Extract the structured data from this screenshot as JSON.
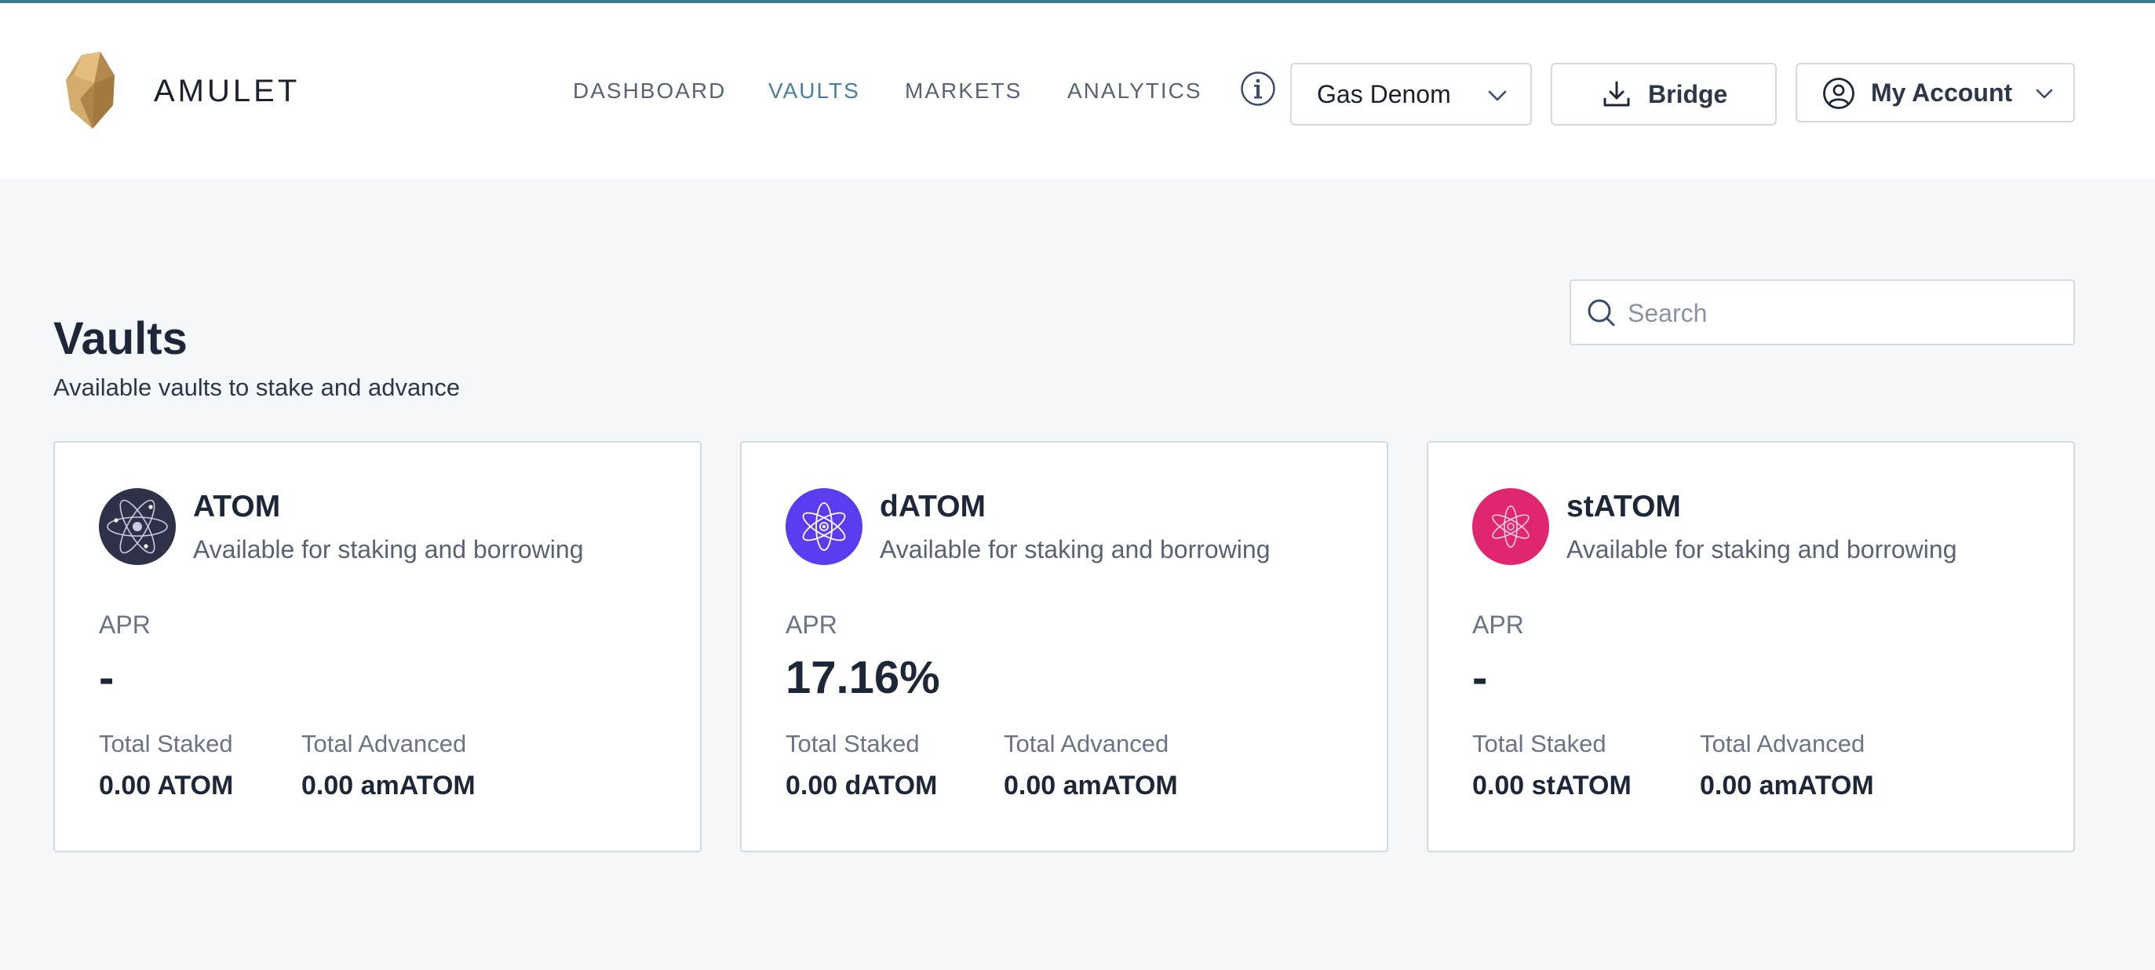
{
  "header": {
    "brand": "AMULET",
    "nav": [
      {
        "label": "DASHBOARD",
        "active": false
      },
      {
        "label": "VAULTS",
        "active": true
      },
      {
        "label": "MARKETS",
        "active": false
      },
      {
        "label": "ANALYTICS",
        "active": false
      }
    ],
    "gas_denom_label": "Gas Denom",
    "bridge_label": "Bridge",
    "account_label": "My Account"
  },
  "main": {
    "title": "Vaults",
    "subtitle": "Available vaults to stake and advance",
    "search_placeholder": "Search",
    "vaults": [
      {
        "name": "ATOM",
        "description": "Available for staking and borrowing",
        "apr_label": "APR",
        "apr": "-",
        "staked_label": "Total Staked",
        "staked": "0.00 ATOM",
        "advanced_label": "Total Advanced",
        "advanced": "0.00 amATOM",
        "icon_color": "#2e3148"
      },
      {
        "name": "dATOM",
        "description": "Available for staking and borrowing",
        "apr_label": "APR",
        "apr": "17.16%",
        "staked_label": "Total Staked",
        "staked": "0.00 dATOM",
        "advanced_label": "Total Advanced",
        "advanced": "0.00 amATOM",
        "icon_color": "#5b3cf0"
      },
      {
        "name": "stATOM",
        "description": "Available for staking and borrowing",
        "apr_label": "APR",
        "apr": "-",
        "staked_label": "Total Staked",
        "staked": "0.00 stATOM",
        "advanced_label": "Total Advanced",
        "advanced": "0.00 amATOM",
        "icon_color": "#e0266f"
      }
    ]
  },
  "colors": {
    "accent": "#4a7f9a",
    "background": "#f5f8fb",
    "text_dark": "#1e2738"
  }
}
